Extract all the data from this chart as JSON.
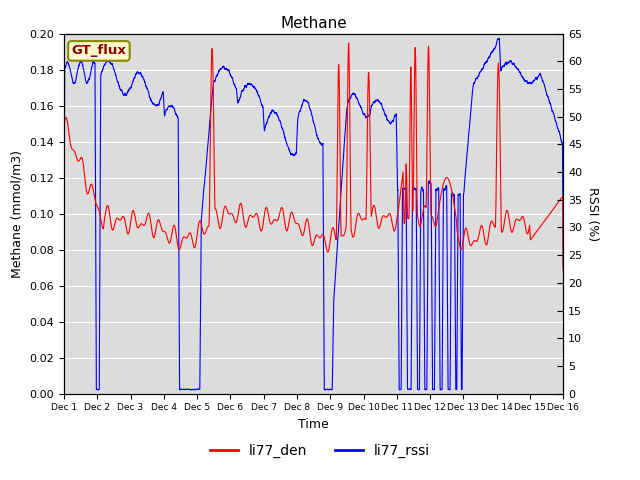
{
  "title": "Methane",
  "ylabel_left": "Methane (mmol/m3)",
  "ylabel_right": "RSSI (%)",
  "xlabel": "Time",
  "ylim_left": [
    0.0,
    0.2
  ],
  "ylim_right": [
    0,
    65
  ],
  "yticks_left": [
    0.0,
    0.02,
    0.04,
    0.06,
    0.08,
    0.1,
    0.12,
    0.14,
    0.16,
    0.18,
    0.2
  ],
  "yticks_right": [
    0,
    5,
    10,
    15,
    20,
    25,
    30,
    35,
    40,
    45,
    50,
    55,
    60,
    65
  ],
  "xtick_labels": [
    "Dec 1",
    "Dec 2",
    "Dec 3",
    "Dec 4",
    "Dec 5",
    "Dec 6",
    "Dec 7",
    "Dec 8",
    "Dec 9",
    "Dec 10",
    "Dec 11",
    "Dec 12",
    "Dec 13",
    "Dec 14",
    "Dec 15",
    "Dec 16"
  ],
  "n_days": 15,
  "color_red": "#FF0000",
  "color_blue": "#0000FF",
  "legend_label_red": "li77_den",
  "legend_label_blue": "li77_rssi",
  "gt_flux_label": "GT_flux",
  "fig_bg_color": "#FFFFFF",
  "plot_bg_color": "#DCDCDC",
  "grid_color": "#FFFFFF",
  "title_fontsize": 11,
  "axis_label_fontsize": 9,
  "tick_fontsize": 8,
  "legend_fontsize": 10,
  "line_width": 0.8
}
